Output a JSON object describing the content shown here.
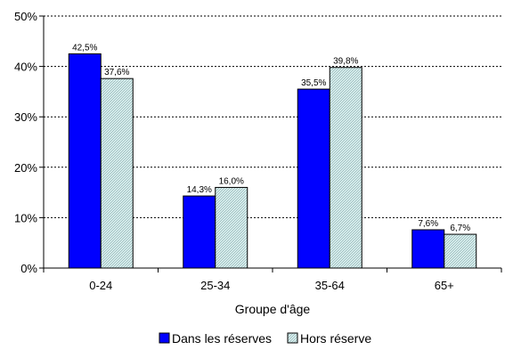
{
  "chart_data": {
    "type": "bar",
    "title": "",
    "xlabel": "Groupe d'âge",
    "ylabel": "",
    "categories": [
      "0-24",
      "25-34",
      "35-64",
      "65+"
    ],
    "series": [
      {
        "name": "Dans les réserves",
        "values": [
          42.5,
          14.3,
          35.5,
          7.6
        ],
        "labels": [
          "42,5%",
          "14,3%",
          "35,5%",
          "7,6%"
        ],
        "color": "#0000ff"
      },
      {
        "name": "Hors réserve",
        "values": [
          37.6,
          16.0,
          39.8,
          6.7
        ],
        "labels": [
          "37,6%",
          "16,0%",
          "39,8%",
          "6,7%"
        ],
        "color": "#cce6e6"
      }
    ],
    "ylim": [
      0,
      50
    ],
    "yticks": [
      {
        "value": 0,
        "label": "0%"
      },
      {
        "value": 10,
        "label": "10%"
      },
      {
        "value": 20,
        "label": "20%"
      },
      {
        "value": 30,
        "label": "30%"
      },
      {
        "value": 40,
        "label": "40%"
      },
      {
        "value": 50,
        "label": "50%"
      }
    ],
    "grid": true,
    "legend_position": "bottom"
  }
}
